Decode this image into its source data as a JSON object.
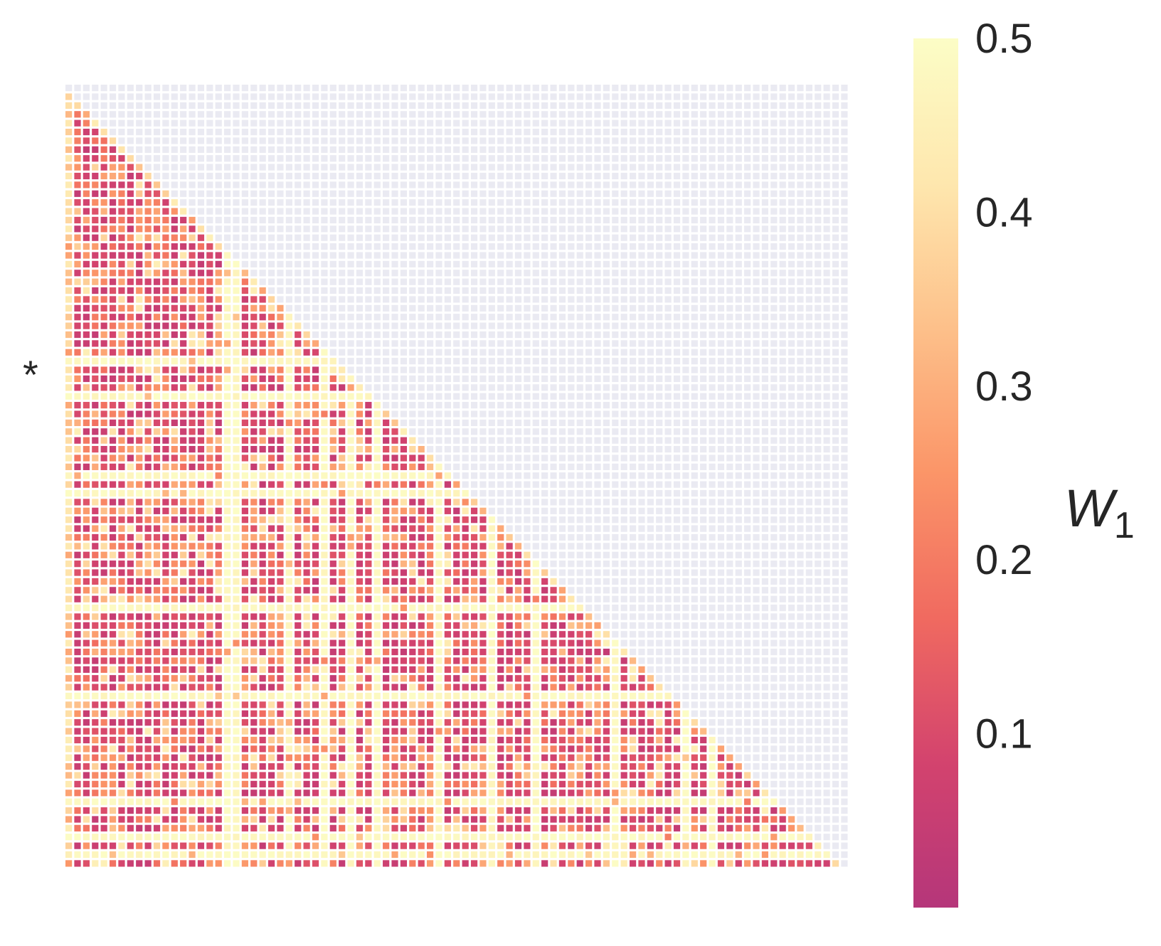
{
  "chart_data": {
    "type": "heatmap",
    "title": "",
    "matrix": "lower-triangular",
    "n_rows": 89,
    "n_cols": 89,
    "value_range": [
      0.0,
      0.5
    ],
    "masked_color": "#EAEAF2",
    "marked_row_index": 31,
    "row_marker": "*",
    "colorbar": {
      "label": "W",
      "label_subscript": "1",
      "ticks": [
        "0.1",
        "0.2",
        "0.3",
        "0.4",
        "0.5"
      ],
      "tick_values": [
        0.1,
        0.2,
        0.3,
        0.4,
        0.5
      ],
      "colormap": "magma-like (pink → orange → pale yellow)",
      "colors": [
        "#B5367A",
        "#D3436E",
        "#F06A60",
        "#FB9568",
        "#FDC08A",
        "#FEE7AE",
        "#FCFDC6"
      ]
    },
    "pattern": {
      "high_value_rows": [
        31,
        35,
        44,
        46,
        59,
        69,
        81,
        85,
        87
      ],
      "high_value_cols": [
        18,
        19,
        25,
        29,
        32,
        35,
        42,
        48,
        53,
        62,
        70,
        73
      ],
      "high_value": 0.5,
      "typical_low": 0.08,
      "typical_mid": 0.25
    }
  }
}
